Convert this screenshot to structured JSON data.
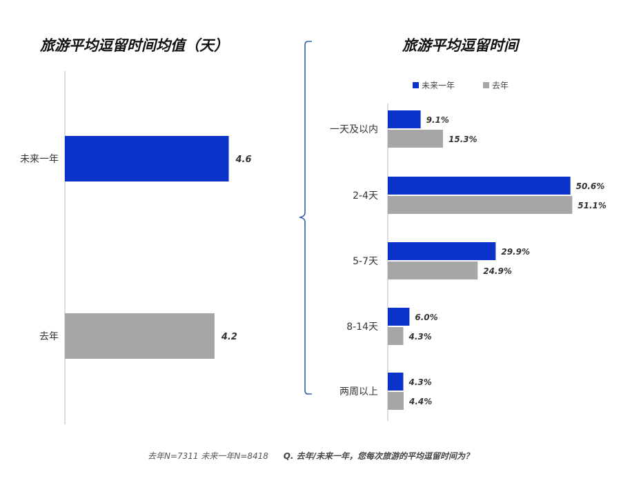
{
  "titles": {
    "left": "旅游平均逗留时间均值（天）",
    "right": "旅游平均逗留时间"
  },
  "footer": {
    "sample": "去年N=7311 未来一年N=8418",
    "question": "Q. 去年/未来一年，您每次旅游的平均逗留时间为？"
  },
  "colors": {
    "next_year": "#0b33c9",
    "last_year": "#a6a6a6"
  },
  "chart_data": [
    {
      "type": "bar",
      "orientation": "horizontal",
      "title": "旅游平均逗留时间均值（天）",
      "categories": [
        "未来一年",
        "去年"
      ],
      "values": [
        4.6,
        4.2
      ],
      "value_labels": [
        "4.6",
        "4.2"
      ],
      "xlim": [
        0,
        5.5
      ],
      "grid": false
    },
    {
      "type": "bar",
      "orientation": "horizontal",
      "title": "旅游平均逗留时间",
      "categories": [
        "一天及以内",
        "2-4天",
        "5-7天",
        "8-14天",
        "两周以上"
      ],
      "series": [
        {
          "name": "未来一年",
          "values": [
            9.1,
            50.6,
            29.9,
            6.0,
            4.3
          ],
          "labels": [
            "9.1%",
            "50.6%",
            "29.9%",
            "6.0%",
            "4.3%"
          ]
        },
        {
          "name": "去年",
          "values": [
            15.3,
            51.1,
            24.9,
            4.3,
            4.4
          ],
          "labels": [
            "15.3%",
            "51.1%",
            "24.9%",
            "4.3%",
            "4.4%"
          ]
        }
      ],
      "legend": "top",
      "xlim": [
        0,
        52
      ],
      "grid": false
    }
  ]
}
